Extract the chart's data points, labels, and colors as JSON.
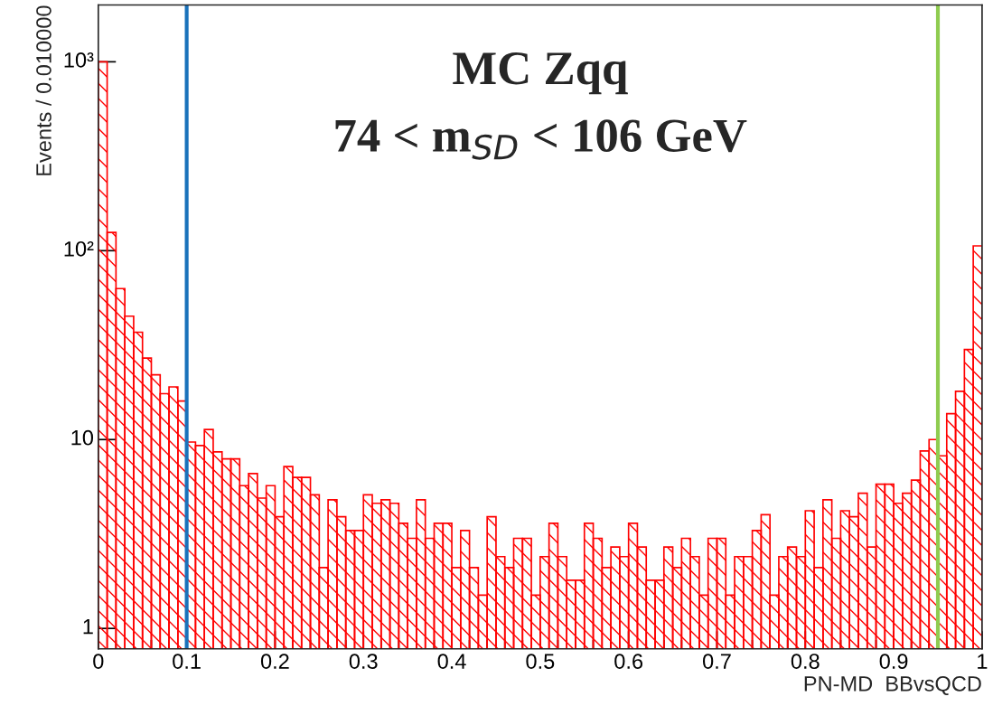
{
  "chart_data": {
    "type": "histogram",
    "bins": [
      0,
      0.01,
      0.02,
      0.03,
      0.04,
      0.05,
      0.06,
      0.07,
      0.08,
      0.09,
      0.1,
      0.11,
      0.12,
      0.13,
      0.14,
      0.15,
      0.16,
      0.17,
      0.18,
      0.19,
      0.2,
      0.21,
      0.22,
      0.23,
      0.24,
      0.25,
      0.26,
      0.27,
      0.28,
      0.29,
      0.3,
      0.31,
      0.32,
      0.33,
      0.34,
      0.35,
      0.36,
      0.37,
      0.38,
      0.39,
      0.4,
      0.41,
      0.42,
      0.43,
      0.44,
      0.45,
      0.46,
      0.47,
      0.48,
      0.49,
      0.5,
      0.51,
      0.52,
      0.53,
      0.54,
      0.55,
      0.56,
      0.57,
      0.58,
      0.59,
      0.6,
      0.61,
      0.62,
      0.63,
      0.64,
      0.65,
      0.66,
      0.67,
      0.68,
      0.69,
      0.7,
      0.71,
      0.72,
      0.73,
      0.74,
      0.75,
      0.76,
      0.77,
      0.78,
      0.79,
      0.8,
      0.81,
      0.82,
      0.83,
      0.84,
      0.85,
      0.86,
      0.87,
      0.88,
      0.89,
      0.9,
      0.91,
      0.92,
      0.93,
      0.94,
      0.95,
      0.96,
      0.97,
      0.98,
      0.99,
      1
    ],
    "values": [
      1000,
      125,
      63,
      45,
      37,
      27,
      22,
      17.5,
      19,
      16,
      9.7,
      9.3,
      11.3,
      8.6,
      7.9,
      7.9,
      5.7,
      6.6,
      4.9,
      5.7,
      3.9,
      7.2,
      6.3,
      6.3,
      5.1,
      2.1,
      4.8,
      3.9,
      3.3,
      3.3,
      5.1,
      4.6,
      4.8,
      4.6,
      3.6,
      3.0,
      4.8,
      3.0,
      3.6,
      3.6,
      2.1,
      3.3,
      2.1,
      1.5,
      3.9,
      2.4,
      2.1,
      3.0,
      3.0,
      1.5,
      2.4,
      3.6,
      2.4,
      1.8,
      1.8,
      3.6,
      3.0,
      2.1,
      2.7,
      2.4,
      3.6,
      2.7,
      1.8,
      1.8,
      2.7,
      2.1,
      3.0,
      2.4,
      1.5,
      3.0,
      3.0,
      1.5,
      2.4,
      2.4,
      3.3,
      4.0,
      1.5,
      2.4,
      2.7,
      2.4,
      4.2,
      2.1,
      4.8,
      3.0,
      4.2,
      3.9,
      5.2,
      2.7,
      5.8,
      5.8,
      4.6,
      5.2,
      6.1,
      8.7,
      10,
      8.2,
      13.7,
      18,
      30,
      106
    ],
    "color": "#ff0000",
    "xlabel": "PN-MD  BBvsQCD",
    "ylabel": "Events / 0.010000",
    "annotations": [
      "MC Zqq",
      "74 < m$_{SD}$ < 106 GeV"
    ],
    "xlim": [
      0,
      1
    ],
    "xticks": [
      {
        "value": 0,
        "label": "0"
      },
      0.1,
      0.2,
      0.3,
      0.4,
      0.5,
      0.6,
      0.7,
      0.8,
      0.9,
      {
        "value": 1,
        "label": "1"
      }
    ],
    "log": true,
    "ylim": [
      0.78,
      2000
    ],
    "yticks": [
      1,
      10,
      {
        "value": 100,
        "label": "10²"
      },
      {
        "value": 1000,
        "label": "10³"
      }
    ],
    "ref_lines": [
      {
        "axis": "x",
        "value": 0.1,
        "color": "#1a72bb"
      },
      {
        "axis": "x",
        "value": 0.95,
        "color": "#8fcc50"
      }
    ],
    "grid": false,
    "legend": false
  }
}
